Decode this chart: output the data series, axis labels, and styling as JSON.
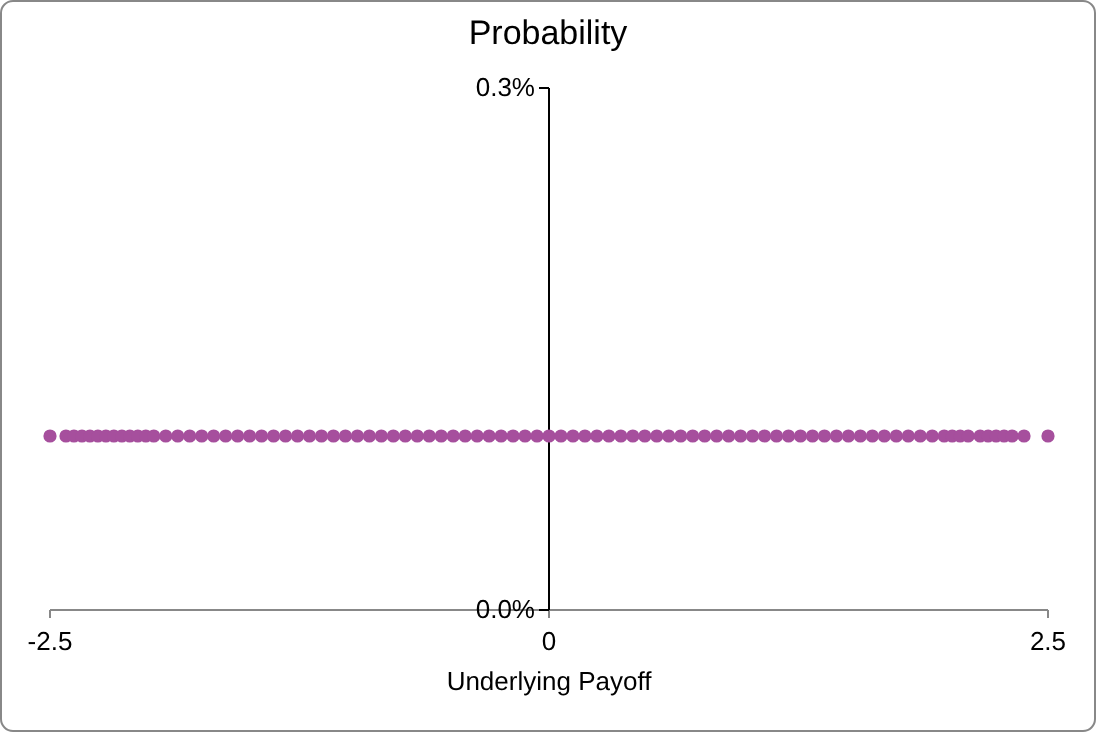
{
  "chart_data": {
    "type": "scatter",
    "title": "Probability",
    "xlabel": "Underlying Payoff",
    "x": [
      -2.5,
      -2.42,
      -2.38,
      -2.34,
      -2.3,
      -2.26,
      -2.22,
      -2.18,
      -2.14,
      -2.1,
      -2.06,
      -2.02,
      -1.98,
      -1.92,
      -1.86,
      -1.8,
      -1.74,
      -1.68,
      -1.62,
      -1.56,
      -1.5,
      -1.44,
      -1.38,
      -1.32,
      -1.26,
      -1.2,
      -1.14,
      -1.08,
      -1.02,
      -0.96,
      -0.9,
      -0.84,
      -0.78,
      -0.72,
      -0.66,
      -0.6,
      -0.54,
      -0.48,
      -0.42,
      -0.36,
      -0.3,
      -0.24,
      -0.18,
      -0.12,
      -0.06,
      0,
      0.06,
      0.12,
      0.18,
      0.24,
      0.3,
      0.36,
      0.42,
      0.48,
      0.54,
      0.6,
      0.66,
      0.72,
      0.78,
      0.84,
      0.9,
      0.96,
      1.02,
      1.08,
      1.14,
      1.2,
      1.26,
      1.32,
      1.38,
      1.44,
      1.5,
      1.56,
      1.62,
      1.68,
      1.74,
      1.8,
      1.86,
      1.92,
      1.98,
      2.02,
      2.06,
      2.1,
      2.16,
      2.2,
      2.24,
      2.28,
      2.32,
      2.38,
      2.5
    ],
    "series": [
      {
        "color": "#a64f9d",
        "values": [
          0.1,
          0.1,
          0.1,
          0.1,
          0.1,
          0.1,
          0.1,
          0.1,
          0.1,
          0.1,
          0.1,
          0.1,
          0.1,
          0.1,
          0.1,
          0.1,
          0.1,
          0.1,
          0.1,
          0.1,
          0.1,
          0.1,
          0.1,
          0.1,
          0.1,
          0.1,
          0.1,
          0.1,
          0.1,
          0.1,
          0.1,
          0.1,
          0.1,
          0.1,
          0.1,
          0.1,
          0.1,
          0.1,
          0.1,
          0.1,
          0.1,
          0.1,
          0.1,
          0.1,
          0.1,
          0.1,
          0.1,
          0.1,
          0.1,
          0.1,
          0.1,
          0.1,
          0.1,
          0.1,
          0.1,
          0.1,
          0.1,
          0.1,
          0.1,
          0.1,
          0.1,
          0.1,
          0.1,
          0.1,
          0.1,
          0.1,
          0.1,
          0.1,
          0.1,
          0.1,
          0.1,
          0.1,
          0.1,
          0.1,
          0.1,
          0.1,
          0.1,
          0.1,
          0.1,
          0.1,
          0.1,
          0.1,
          0.1,
          0.1,
          0.1,
          0.1,
          0.1,
          0.1,
          0.1
        ]
      }
    ],
    "xlim": [
      -2.5,
      2.5
    ],
    "xticks": [
      -2.5,
      0,
      2.5
    ],
    "ylim": [
      0,
      0.3
    ],
    "yticks": [
      {
        "value": 0,
        "label": "0.0%"
      },
      {
        "value": 0.3,
        "label": "0.3%"
      }
    ],
    "marker": "circle",
    "grid": false
  }
}
